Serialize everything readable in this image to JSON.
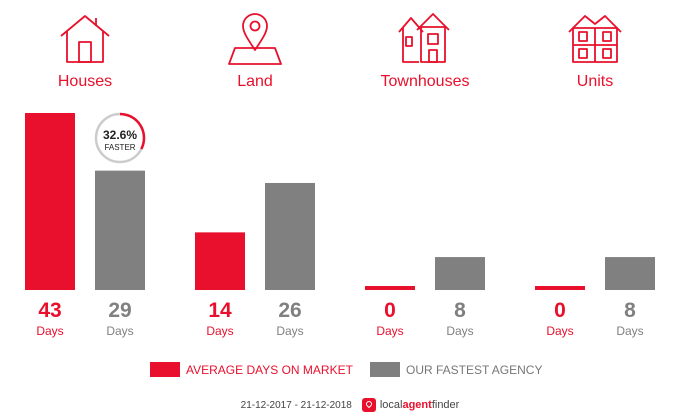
{
  "colors": {
    "accent": "#e8102c",
    "gray": "#808080",
    "ring": "#cccccc"
  },
  "categories": [
    {
      "label": "Houses",
      "icon": "house-icon"
    },
    {
      "label": "Land",
      "icon": "land-pin-icon"
    },
    {
      "label": "Townhouses",
      "icon": "townhouses-icon"
    },
    {
      "label": "Units",
      "icon": "units-icon"
    }
  ],
  "chart_data": {
    "type": "bar",
    "categories": [
      "Houses",
      "Land",
      "Townhouses",
      "Units"
    ],
    "series": [
      {
        "name": "AVERAGE DAYS ON MARKET",
        "values": [
          43,
          14,
          0,
          0
        ],
        "color": "#e8102c"
      },
      {
        "name": "OUR FASTEST AGENCY",
        "values": [
          29,
          26,
          8,
          8
        ],
        "color": "#808080"
      }
    ],
    "unit_label": "Days",
    "ylim": [
      0,
      43
    ],
    "annotation": {
      "category": "Houses",
      "value_text": "32.6%",
      "label": "FASTER",
      "fraction": 0.326
    }
  },
  "legend": {
    "red_label": "AVERAGE DAYS ON MARKET",
    "gray_label": "OUR FASTEST AGENCY"
  },
  "footer": {
    "date_range": "21-12-2017 - 21-12-2018",
    "brand_local": "local",
    "brand_agent": "agent",
    "brand_finder": "finder"
  }
}
